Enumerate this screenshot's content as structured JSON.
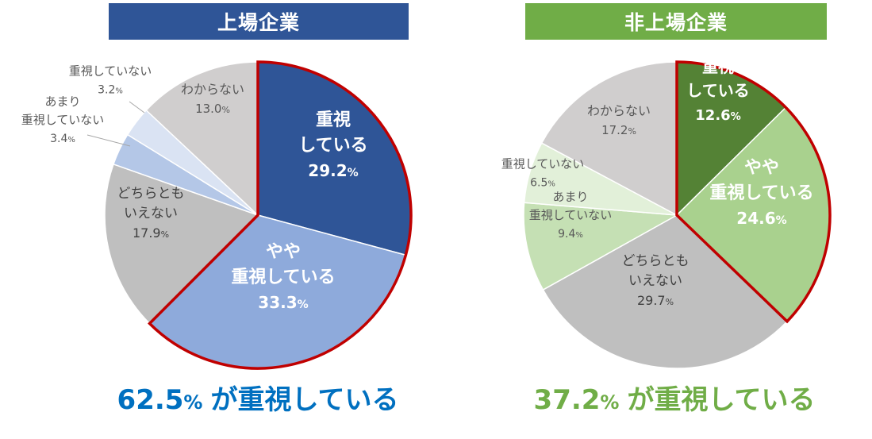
{
  "colors": {
    "listed_banner": "#2f5597",
    "unlisted_banner": "#70ad47",
    "listed_summary": "#0070c0",
    "unlisted_summary": "#70ad47",
    "highlight_border": "#c00000"
  },
  "chart_data": [
    {
      "type": "pie",
      "title": "上場企業",
      "unit": "%",
      "slices": [
        {
          "label": [
            "重視",
            "している"
          ],
          "value": 29.2,
          "value_text": "29.2",
          "color": "#2f5597",
          "label_color": "#ffffff",
          "bold": true,
          "highlight": true
        },
        {
          "label": [
            "やや",
            "重視している"
          ],
          "value": 33.3,
          "value_text": "33.3",
          "color": "#8eaadb",
          "label_color": "#ffffff",
          "bold": true,
          "highlight": true
        },
        {
          "label": [
            "どちらとも",
            "いえない"
          ],
          "value": 17.9,
          "value_text": "17.9",
          "color": "#bfbfbf",
          "label_color": "#404040",
          "bold": false,
          "highlight": false
        },
        {
          "label": [
            "あまり",
            "重視していない"
          ],
          "value": 3.4,
          "value_text": "3.4",
          "color": "#b4c7e7",
          "label_color": "#595959",
          "bold": false,
          "highlight": false
        },
        {
          "label": [
            "重視していない"
          ],
          "value": 3.2,
          "value_text": "3.2",
          "color": "#dae3f3",
          "label_color": "#595959",
          "bold": false,
          "highlight": false
        },
        {
          "label": [
            "わからない"
          ],
          "value": 13.0,
          "value_text": "13.0",
          "color": "#d0cece",
          "label_color": "#595959",
          "bold": false,
          "highlight": false
        }
      ],
      "summary": {
        "value": "62.5",
        "unit": "%",
        "text": "が重視している"
      }
    },
    {
      "type": "pie",
      "title": "非上場企業",
      "unit": "%",
      "slices": [
        {
          "label": [
            "重視",
            "している"
          ],
          "value": 12.6,
          "value_text": "12.6",
          "color": "#548235",
          "label_color": "#ffffff",
          "bold": true,
          "highlight": true
        },
        {
          "label": [
            "やや",
            "重視している"
          ],
          "value": 24.6,
          "value_text": "24.6",
          "color": "#a9d18e",
          "label_color": "#ffffff",
          "bold": true,
          "highlight": true
        },
        {
          "label": [
            "どちらとも",
            "いえない"
          ],
          "value": 29.7,
          "value_text": "29.7",
          "color": "#bfbfbf",
          "label_color": "#404040",
          "bold": false,
          "highlight": false
        },
        {
          "label": [
            "あまり",
            "重視していない"
          ],
          "value": 9.4,
          "value_text": "9.4",
          "color": "#c5e0b4",
          "label_color": "#595959",
          "bold": false,
          "highlight": false
        },
        {
          "label": [
            "重視していない"
          ],
          "value": 6.5,
          "value_text": "6.5",
          "color": "#e2f0d9",
          "label_color": "#595959",
          "bold": false,
          "highlight": false
        },
        {
          "label": [
            "わからない"
          ],
          "value": 17.2,
          "value_text": "17.2",
          "color": "#d0cece",
          "label_color": "#595959",
          "bold": false,
          "highlight": false
        }
      ],
      "summary": {
        "value": "37.2",
        "unit": "%",
        "text": "が重視している"
      }
    }
  ]
}
